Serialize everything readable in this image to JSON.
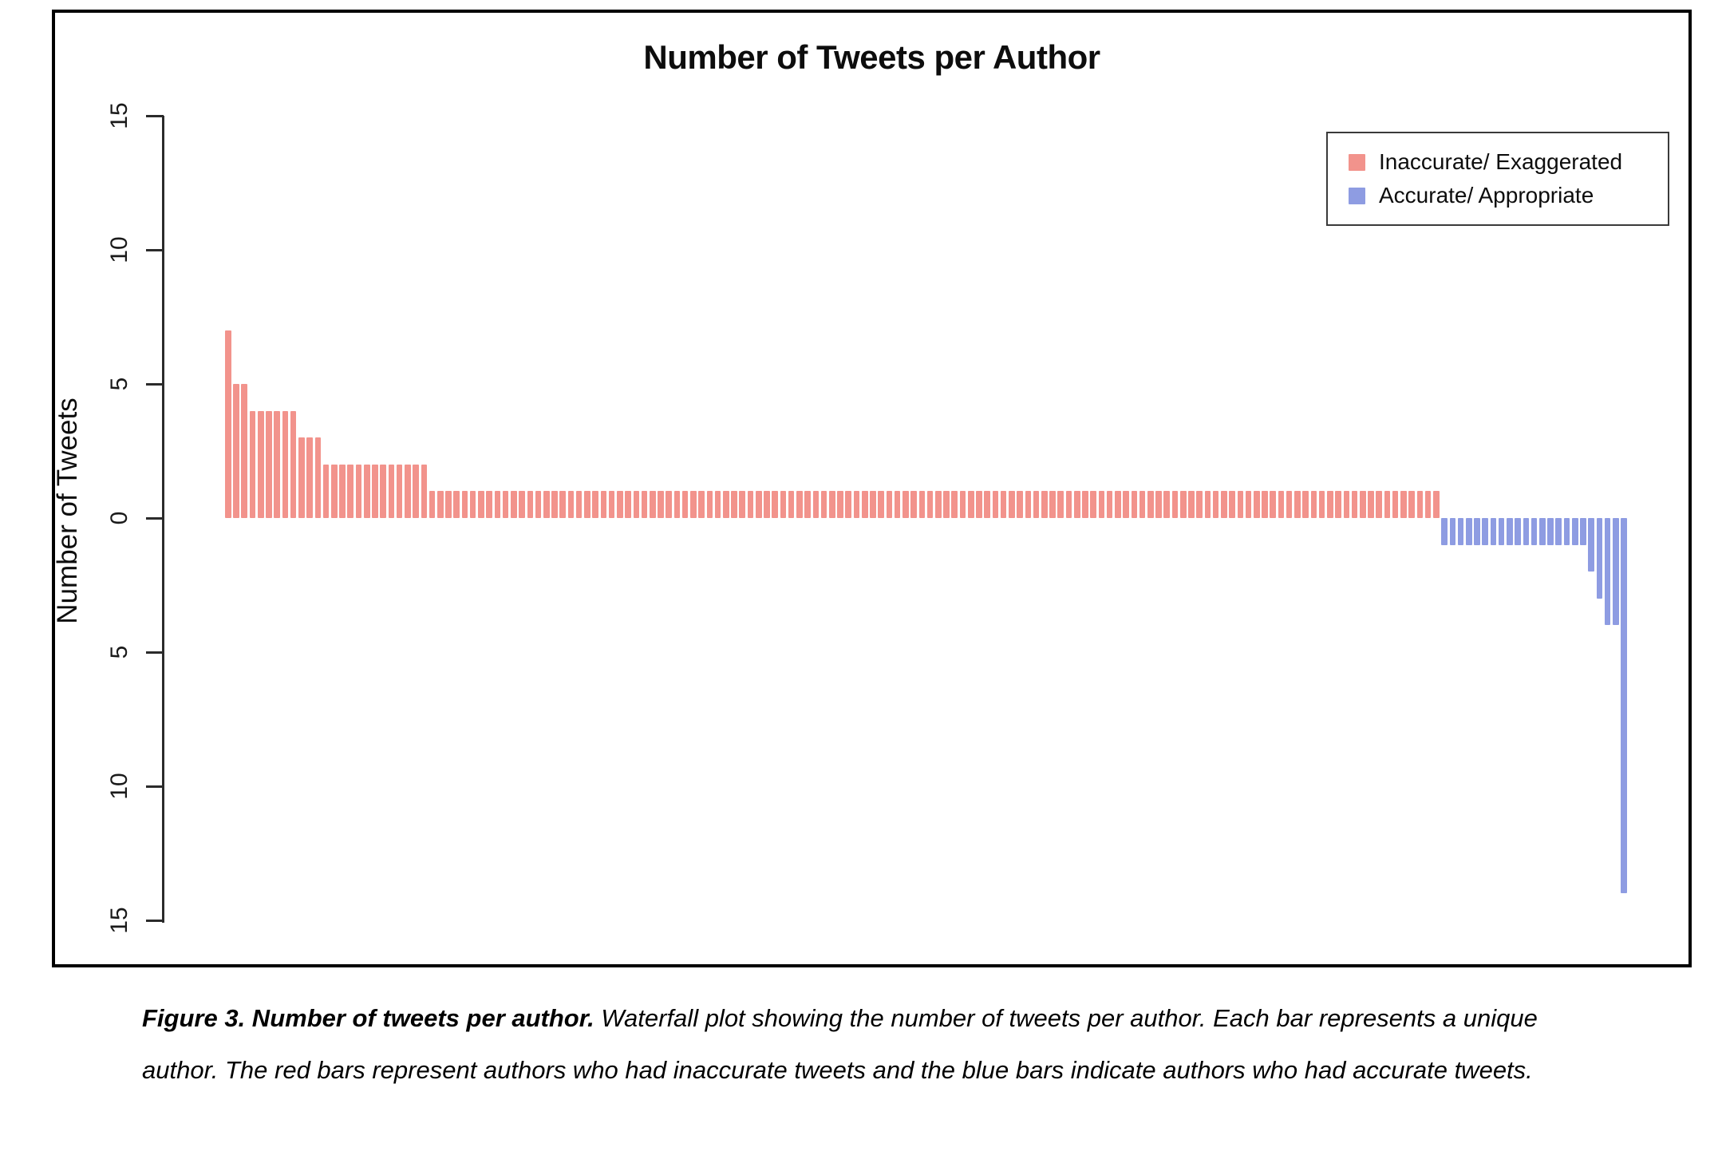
{
  "figure": {
    "title": "Number of Tweets per Author",
    "y_axis_label": "Number of Tweets",
    "legend": {
      "items": [
        {
          "label": "Inaccurate/ Exaggerated",
          "color": "#F2938C"
        },
        {
          "label": "Accurate/ Appropriate",
          "color": "#8E9CE2"
        }
      ]
    }
  },
  "caption": {
    "lead": "Figure 3. Number of tweets per author.",
    "body": " Waterfall plot showing the number of tweets per author. Each bar represents a unique author. The red bars represent authors who had inaccurate tweets and the blue bars indicate authors who had accurate tweets."
  },
  "chart_data": {
    "type": "bar",
    "subtype": "waterfall",
    "title": "Number of Tweets per Author",
    "xlabel": "",
    "ylabel": "Number of Tweets",
    "yticks": [
      "15",
      "10",
      "5",
      "0",
      "5",
      "10",
      "15"
    ],
    "axis_note": "mirrored axis: absolute tweet counts 0-15 upward for inaccurate bars and 0-15 downward for accurate bars",
    "grid": false,
    "legend_position": "top-right",
    "series": [
      {
        "name": "Inaccurate/ Exaggerated",
        "color": "#F2938C",
        "direction": "up",
        "values": [
          7,
          5,
          5,
          4,
          4,
          4,
          4,
          4,
          4,
          3,
          3,
          3,
          2,
          2,
          2,
          2,
          2,
          2,
          2,
          2,
          2,
          2,
          2,
          2,
          2,
          1,
          1,
          1,
          1,
          1,
          1,
          1,
          1,
          1,
          1,
          1,
          1,
          1,
          1,
          1,
          1,
          1,
          1,
          1,
          1,
          1,
          1,
          1,
          1,
          1,
          1,
          1,
          1,
          1,
          1,
          1,
          1,
          1,
          1,
          1,
          1,
          1,
          1,
          1,
          1,
          1,
          1,
          1,
          1,
          1,
          1,
          1,
          1,
          1,
          1,
          1,
          1,
          1,
          1,
          1,
          1,
          1,
          1,
          1,
          1,
          1,
          1,
          1,
          1,
          1,
          1,
          1,
          1,
          1,
          1,
          1,
          1,
          1,
          1,
          1,
          1,
          1,
          1,
          1,
          1,
          1,
          1,
          1,
          1,
          1,
          1,
          1,
          1,
          1,
          1,
          1,
          1,
          1,
          1,
          1,
          1,
          1,
          1,
          1,
          1,
          1,
          1,
          1,
          1,
          1,
          1,
          1,
          1,
          1,
          1,
          1,
          1,
          1,
          1,
          1,
          1,
          1,
          1,
          1,
          1,
          1,
          1,
          1,
          1
        ]
      },
      {
        "name": "Accurate/ Appropriate",
        "color": "#8E9CE2",
        "direction": "down",
        "values": [
          1,
          1,
          1,
          1,
          1,
          1,
          1,
          1,
          1,
          1,
          1,
          1,
          1,
          1,
          1,
          1,
          1,
          1,
          2,
          3,
          4,
          4,
          14
        ]
      }
    ]
  }
}
